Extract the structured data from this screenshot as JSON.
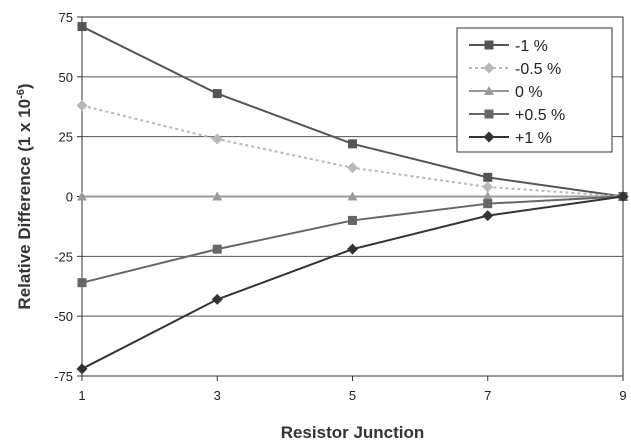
{
  "chart_data": {
    "type": "line",
    "xlabel": "Resistor Junction",
    "ylabel": "Relative Difference (1 x 10",
    "ylabel_exp": "-6",
    "ylabel_close": ")",
    "x": [
      1,
      3,
      5,
      7,
      9
    ],
    "xlim": [
      1,
      9
    ],
    "ylim": [
      -75,
      75
    ],
    "x_ticks": [
      "1",
      "3",
      "5",
      "7",
      "9"
    ],
    "y_ticks": [
      "75",
      "50",
      "25",
      "0",
      "-25",
      "-50",
      "-75"
    ],
    "grid": "horizontal",
    "legend_position": "top-right",
    "series": [
      {
        "name": "-1 %",
        "values": [
          71,
          43,
          22,
          8,
          0
        ],
        "color": "#555555",
        "marker": "square",
        "dashed": false
      },
      {
        "name": "-0.5 %",
        "values": [
          38,
          24,
          12,
          4,
          0
        ],
        "color": "#b8b8b8",
        "marker": "diamond",
        "dashed": true
      },
      {
        "name": "0 %",
        "values": [
          0,
          0,
          0,
          0,
          0
        ],
        "color": "#999999",
        "marker": "triangle",
        "dashed": false
      },
      {
        "name": "+0.5 %",
        "values": [
          -36,
          -22,
          -10,
          -3,
          0
        ],
        "color": "#666666",
        "marker": "square",
        "dashed": false
      },
      {
        "name": "+1 %",
        "values": [
          -72,
          -43,
          -22,
          -8,
          0
        ],
        "color": "#333333",
        "marker": "diamond",
        "dashed": false
      }
    ]
  }
}
